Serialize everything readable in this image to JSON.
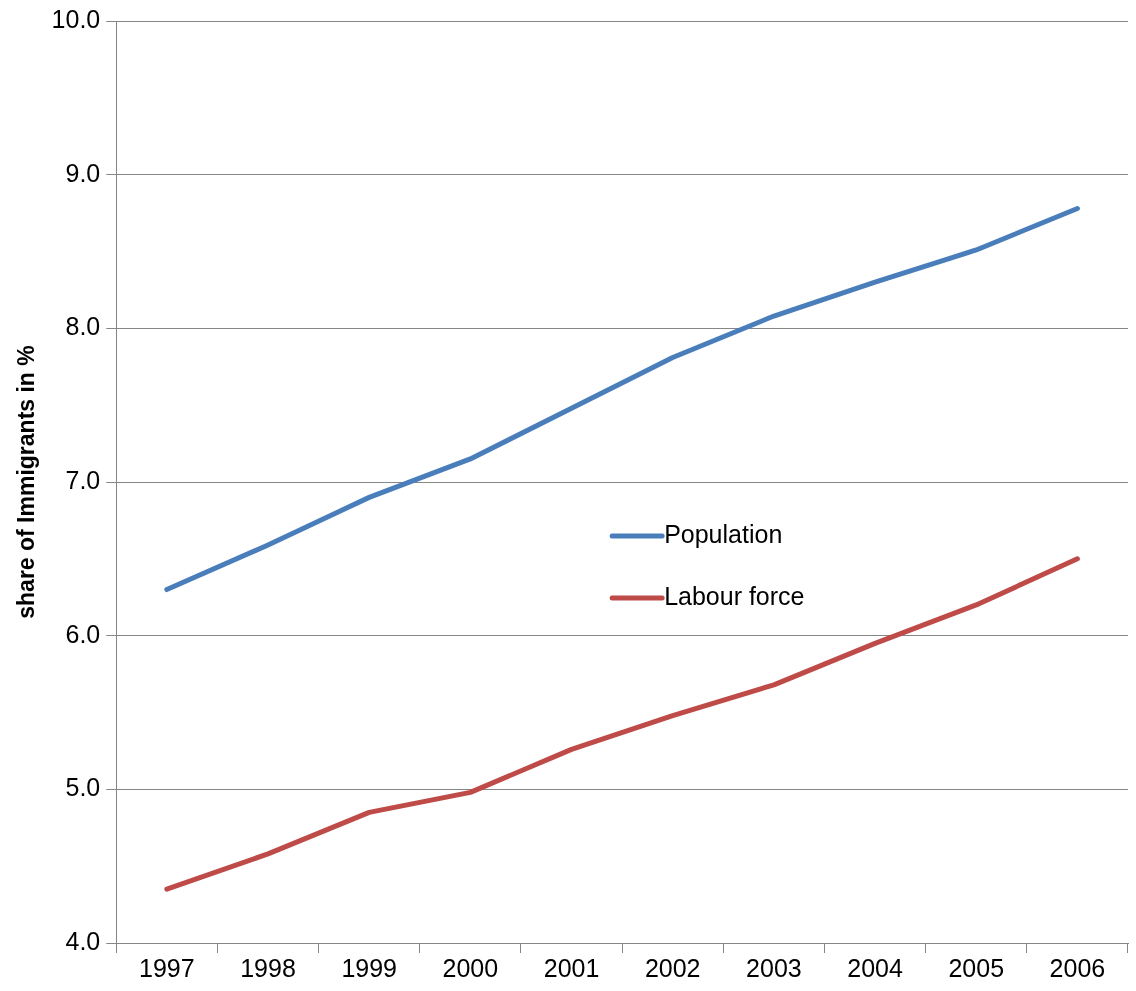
{
  "chart_data": {
    "type": "line",
    "ylabel": "share of Immigrants in %",
    "categories": [
      "1997",
      "1998",
      "1999",
      "2000",
      "2001",
      "2002",
      "2003",
      "2004",
      "2005",
      "2006"
    ],
    "series": [
      {
        "name": "Population",
        "color": "#4a7ebb",
        "values": [
          6.3,
          6.59,
          6.9,
          7.15,
          7.48,
          7.81,
          8.08,
          8.3,
          8.51,
          8.78
        ]
      },
      {
        "name": "Labour force",
        "color": "#be4b48",
        "values": [
          4.35,
          4.58,
          4.85,
          4.98,
          5.26,
          5.48,
          5.68,
          5.95,
          6.2,
          6.5
        ]
      }
    ],
    "ylim": [
      4,
      10
    ],
    "yticks": [
      {
        "value": 4,
        "label": "4.0"
      },
      {
        "value": 5,
        "label": "5.0"
      },
      {
        "value": 6,
        "label": "6.0"
      },
      {
        "value": 7,
        "label": "7.0"
      },
      {
        "value": 8,
        "label": "8.0"
      },
      {
        "value": 9,
        "label": "9.0"
      },
      {
        "value": 10,
        "label": "10.0"
      }
    ],
    "grid": "y",
    "legend": "center",
    "marker": "none",
    "line_style": "solid"
  }
}
